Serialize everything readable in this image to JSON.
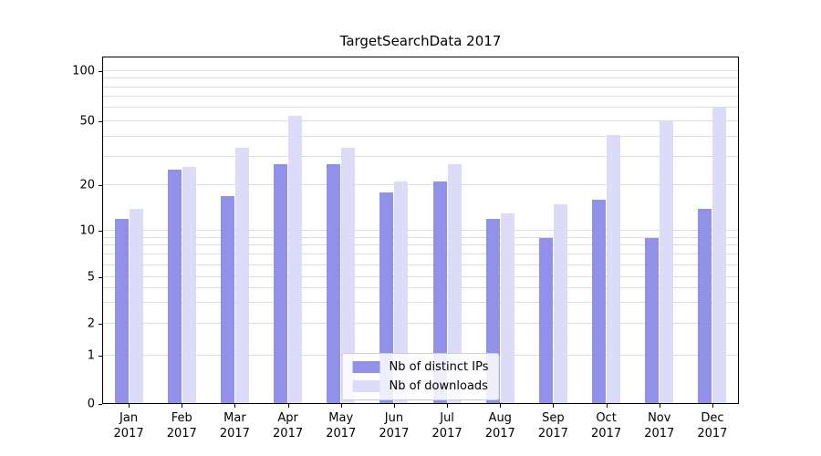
{
  "chart_data": {
    "type": "bar",
    "title": "TargetSearchData 2017",
    "categories": [
      "Jan 2017",
      "Feb 2017",
      "Mar 2017",
      "Apr 2017",
      "May 2017",
      "Jun 2017",
      "Jul 2017",
      "Aug 2017",
      "Sep 2017",
      "Oct 2017",
      "Nov 2017",
      "Dec 2017"
    ],
    "series": [
      {
        "name": "Nb of distinct IPs",
        "color": "#9191e9",
        "values": [
          12,
          25,
          17,
          27,
          27,
          18,
          21,
          12,
          9,
          16,
          9,
          14
        ]
      },
      {
        "name": "Nb of downloads",
        "color": "#dcdcf9",
        "values": [
          14,
          26,
          34,
          54,
          34,
          21,
          27,
          13,
          15,
          41,
          50,
          60
        ]
      }
    ],
    "yscale": "symlog",
    "yticks": [
      0,
      1,
      2,
      5,
      10,
      20,
      50,
      100
    ],
    "minor_grid_values": [
      1,
      2,
      3,
      4,
      5,
      6,
      7,
      8,
      9,
      10,
      20,
      30,
      40,
      50,
      60,
      70,
      80,
      90,
      100
    ],
    "ylim": [
      0,
      120
    ],
    "grid": true,
    "legend_position": "lower center"
  },
  "colors": {
    "grid": "#dddddd",
    "spine": "#000000",
    "legend_border": "#cccccc",
    "background": "#ffffff",
    "text": "#000000"
  }
}
